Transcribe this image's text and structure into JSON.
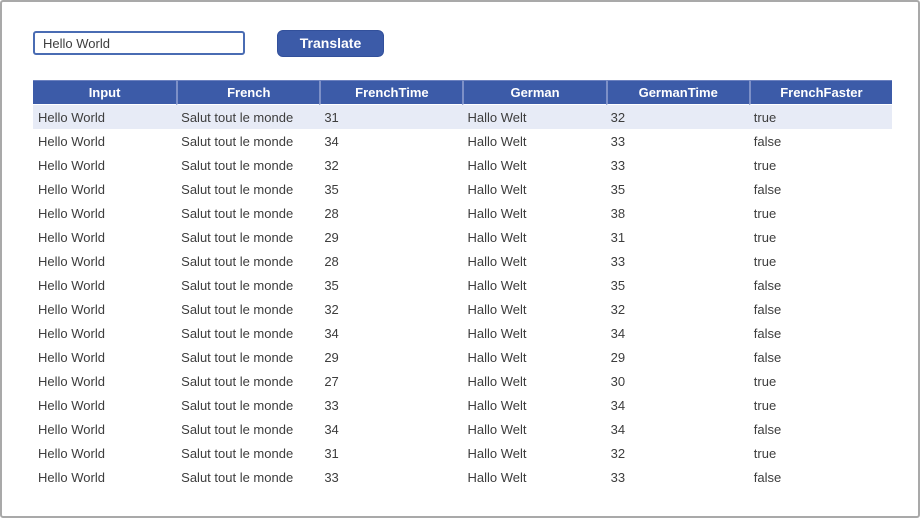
{
  "theme": {
    "accent": "#3c5ba8",
    "accent_dark": "#32509b",
    "header_separator": "#7d90c7",
    "highlight_row_background": "#e7ebf6",
    "text_color": "#3d3d3d",
    "window_border": "#a9a9a9"
  },
  "controls": {
    "input": {
      "value": "Hello World",
      "placeholder": ""
    },
    "translate_button": {
      "label": "Translate"
    }
  },
  "table": {
    "columns": [
      "Input",
      "French",
      "FrenchTime",
      "German",
      "GermanTime",
      "FrenchFaster"
    ],
    "highlighted_row_index": 0,
    "rows": [
      [
        "Hello World",
        "Salut tout le monde",
        "31",
        "Hallo Welt",
        "32",
        "true"
      ],
      [
        "Hello World",
        "Salut tout le monde",
        "34",
        "Hallo Welt",
        "33",
        "false"
      ],
      [
        "Hello World",
        "Salut tout le monde",
        "32",
        "Hallo Welt",
        "33",
        "true"
      ],
      [
        "Hello World",
        "Salut tout le monde",
        "35",
        "Hallo Welt",
        "35",
        "false"
      ],
      [
        "Hello World",
        "Salut tout le monde",
        "28",
        "Hallo Welt",
        "38",
        "true"
      ],
      [
        "Hello World",
        "Salut tout le monde",
        "29",
        "Hallo Welt",
        "31",
        "true"
      ],
      [
        "Hello World",
        "Salut tout le monde",
        "28",
        "Hallo Welt",
        "33",
        "true"
      ],
      [
        "Hello World",
        "Salut tout le monde",
        "35",
        "Hallo Welt",
        "35",
        "false"
      ],
      [
        "Hello World",
        "Salut tout le monde",
        "32",
        "Hallo Welt",
        "32",
        "false"
      ],
      [
        "Hello World",
        "Salut tout le monde",
        "34",
        "Hallo Welt",
        "34",
        "false"
      ],
      [
        "Hello World",
        "Salut tout le monde",
        "29",
        "Hallo Welt",
        "29",
        "false"
      ],
      [
        "Hello World",
        "Salut tout le monde",
        "27",
        "Hallo Welt",
        "30",
        "true"
      ],
      [
        "Hello World",
        "Salut tout le monde",
        "33",
        "Hallo Welt",
        "34",
        "true"
      ],
      [
        "Hello World",
        "Salut tout le monde",
        "34",
        "Hallo Welt",
        "34",
        "false"
      ],
      [
        "Hello World",
        "Salut tout le monde",
        "31",
        "Hallo Welt",
        "32",
        "true"
      ],
      [
        "Hello World",
        "Salut tout le monde",
        "33",
        "Hallo Welt",
        "33",
        "false"
      ]
    ]
  }
}
